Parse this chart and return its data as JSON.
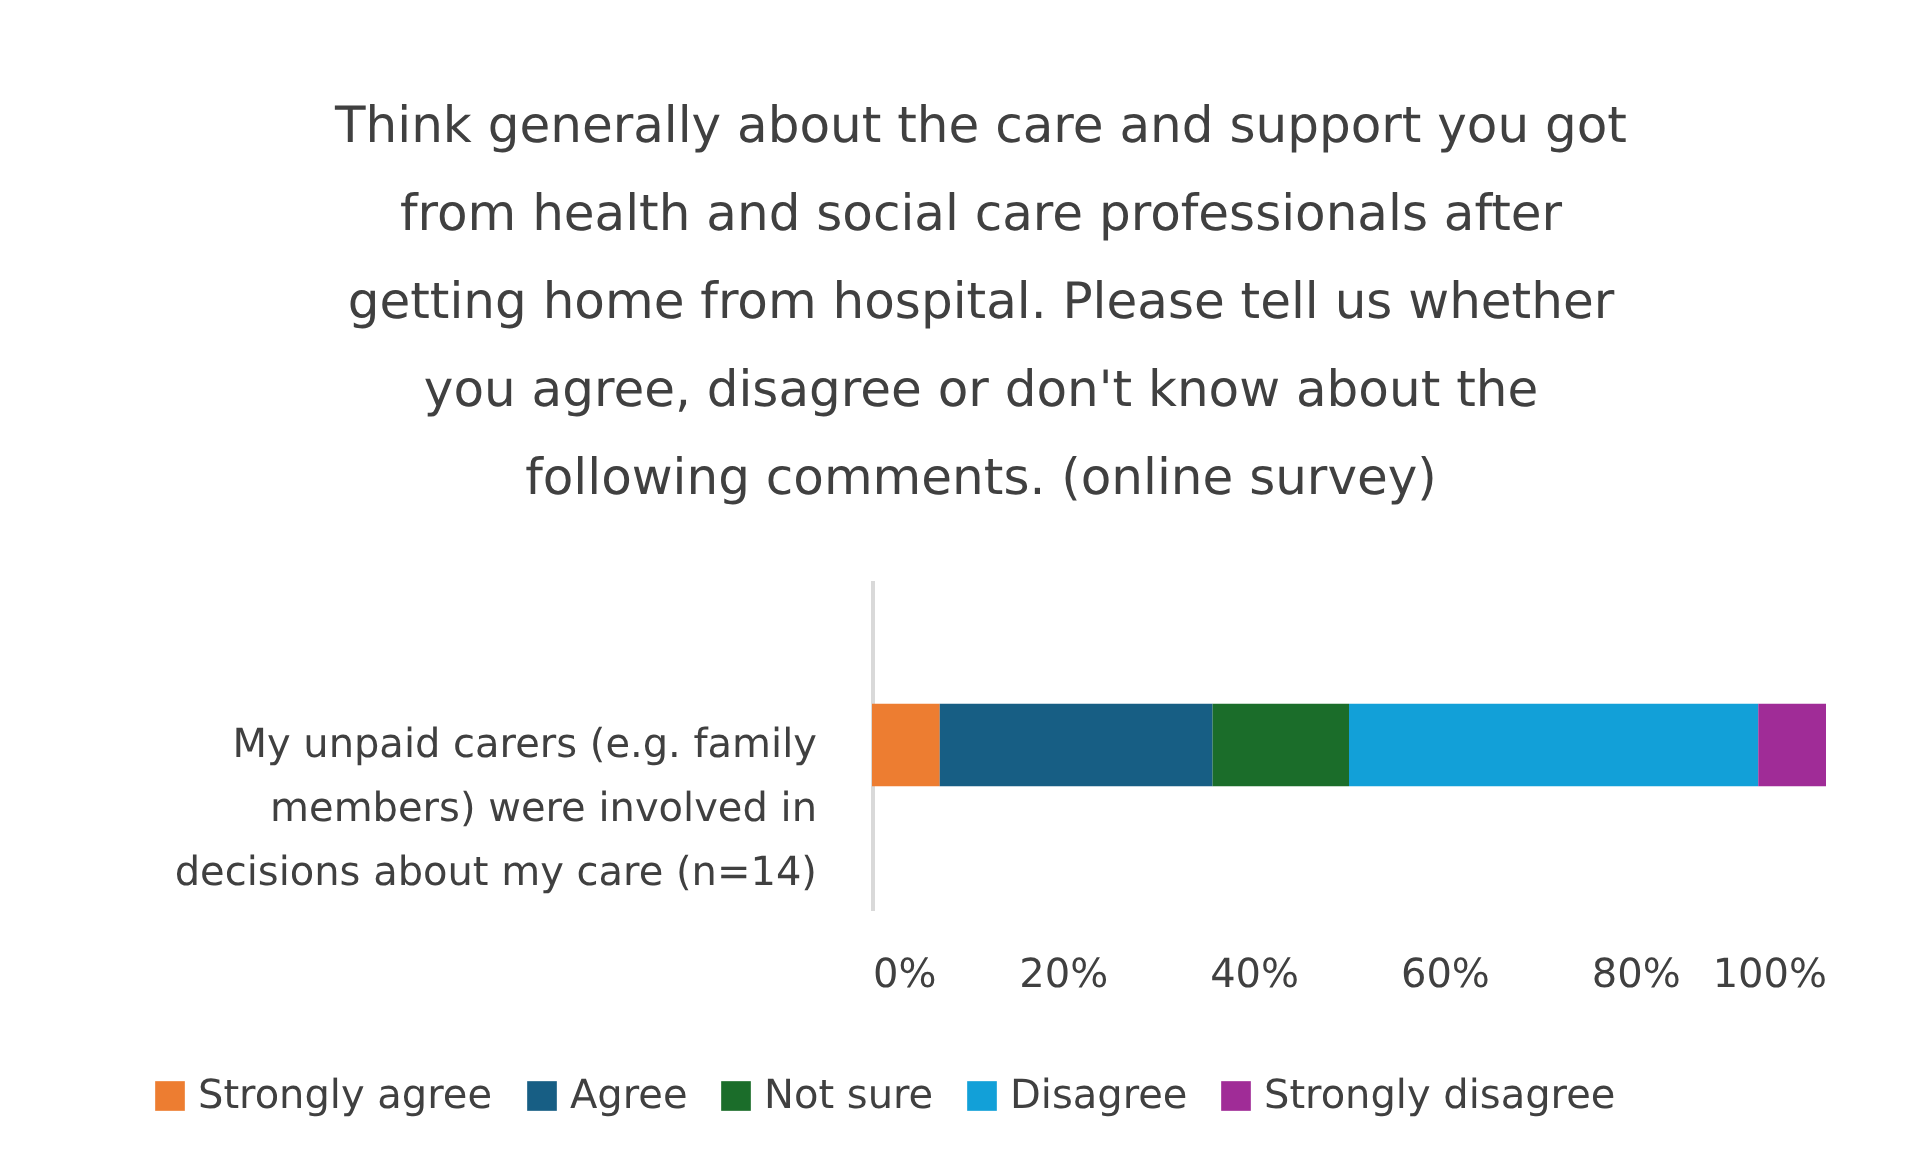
{
  "chart_data": {
    "type": "bar",
    "orientation": "horizontal",
    "stacked": true,
    "title": "Think generally about the care and support you got from health and social care professionals after getting home from hospital. Please tell us whether you agree, disagree or don't know about the following comments. (online survey)",
    "categories": [
      "My unpaid carers (e.g. family members) were involved in decisions about my care (n=14)"
    ],
    "series": [
      {
        "name": "Strongly agree",
        "color": "#ed7d31",
        "values": [
          7.1
        ]
      },
      {
        "name": "Agree",
        "color": "#175e84",
        "values": [
          28.6
        ]
      },
      {
        "name": "Not sure",
        "color": "#1b6d2a",
        "values": [
          14.3
        ]
      },
      {
        "name": "Disagree",
        "color": "#12a0d8",
        "values": [
          42.9
        ]
      },
      {
        "name": "Strongly disagree",
        "color": "#a02c97",
        "values": [
          7.1
        ]
      }
    ],
    "xlim": [
      0,
      100
    ],
    "xticks": [
      {
        "value": 0,
        "label": "0%"
      },
      {
        "value": 20,
        "label": "20%"
      },
      {
        "value": 40,
        "label": "40%"
      },
      {
        "value": 60,
        "label": "60%"
      },
      {
        "value": 80,
        "label": "80%"
      },
      {
        "value": 100,
        "label": "100%"
      }
    ],
    "legend": "bottom",
    "grid": false
  }
}
